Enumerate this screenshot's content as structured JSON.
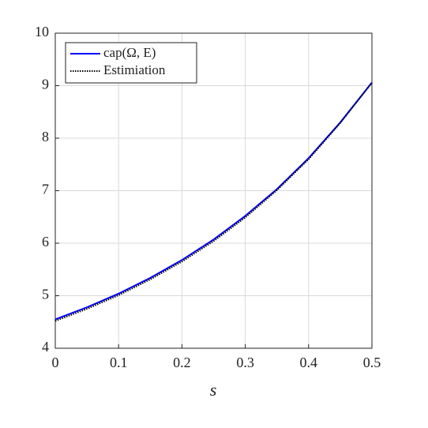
{
  "chart_data": {
    "type": "line",
    "xlabel": "s",
    "x": [
      0,
      0.05,
      0.1,
      0.15,
      0.2,
      0.25,
      0.3,
      0.35,
      0.4,
      0.45,
      0.5
    ],
    "series": [
      {
        "name": "cap(Ω, E)",
        "color": "#0000ff",
        "style": "solid",
        "values": [
          4.55,
          4.78,
          5.04,
          5.34,
          5.68,
          6.07,
          6.52,
          7.03,
          7.62,
          8.3,
          9.06
        ]
      },
      {
        "name": "Estimiation",
        "color": "#000000",
        "style": "dotted",
        "values": [
          4.52,
          4.75,
          5.01,
          5.31,
          5.65,
          6.04,
          6.49,
          7.01,
          7.6,
          8.29,
          9.06
        ]
      }
    ],
    "xlim": [
      0,
      0.5
    ],
    "ylim": [
      4,
      10
    ],
    "xticks": [
      0,
      0.1,
      0.2,
      0.3,
      0.4,
      0.5
    ],
    "yticks": [
      4,
      5,
      6,
      7,
      8,
      9,
      10
    ],
    "grid": true,
    "legend": "northwest"
  }
}
